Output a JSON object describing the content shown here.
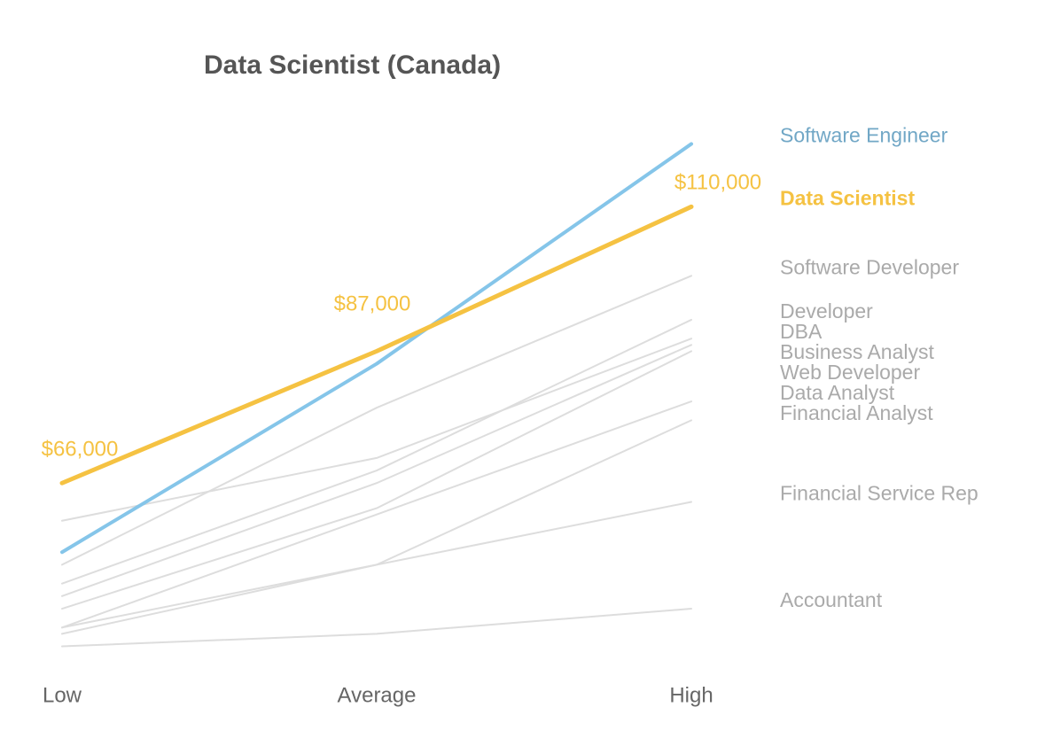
{
  "chart_data": {
    "type": "slope",
    "title": "Data Scientist (Canada)",
    "categories": [
      "Low",
      "Average",
      "High"
    ],
    "ylim": [
      35000,
      125000
    ],
    "series": [
      {
        "name": "Software Developer",
        "color": "#dddddd",
        "values": [
          53000,
          78000,
          99000
        ]
      },
      {
        "name": "Developer",
        "color": "#dddddd",
        "values": [
          50000,
          68000,
          92000
        ]
      },
      {
        "name": "DBA",
        "color": "#dddddd",
        "values": [
          60000,
          70000,
          89000
        ]
      },
      {
        "name": "Business Analyst",
        "color": "#dddddd",
        "values": [
          48000,
          66000,
          88000
        ]
      },
      {
        "name": "Web Developer",
        "color": "#dddddd",
        "values": [
          46000,
          62000,
          87000
        ]
      },
      {
        "name": "Data Analyst",
        "color": "#dddddd",
        "values": [
          43000,
          61000,
          79000
        ]
      },
      {
        "name": "Financial Analyst",
        "color": "#dddddd",
        "values": [
          43000,
          53000,
          76000
        ]
      },
      {
        "name": "Financial Service Rep",
        "color": "#dddddd",
        "values": [
          42000,
          53000,
          63000
        ]
      },
      {
        "name": "Accountant",
        "color": "#dddddd",
        "values": [
          40000,
          42000,
          46000
        ]
      },
      {
        "name": "Software Engineer",
        "color": "#85c5e9",
        "values": [
          55000,
          85000,
          120000
        ]
      },
      {
        "name": "Data Scientist",
        "color": "#f5c242",
        "values": [
          66000,
          87000,
          110000
        ],
        "value_labels": [
          "$66,000",
          "$87,000",
          "$110,000"
        ]
      }
    ]
  }
}
